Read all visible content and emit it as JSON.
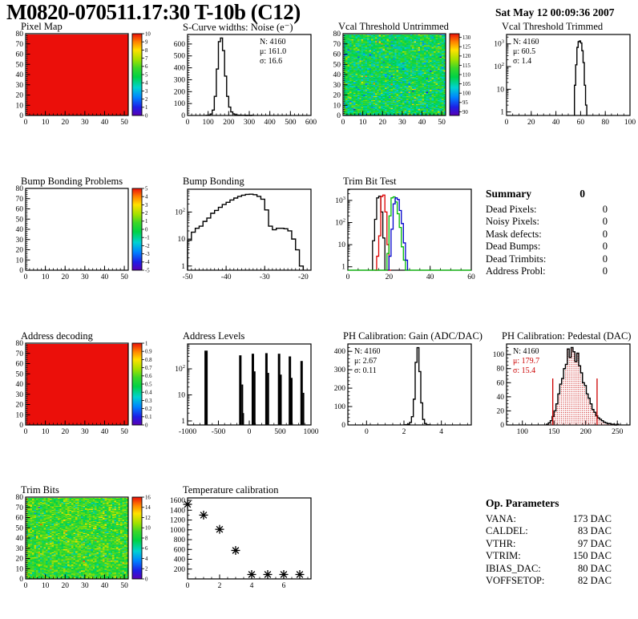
{
  "page": {
    "title": "M0820-070511.17:30 T-10b (C12)",
    "timestamp": "Sat May 12 00:09:36 2007"
  },
  "summary": {
    "heading": "Summary",
    "total": "0",
    "rows": [
      {
        "label": "Dead Pixels:",
        "value": "0"
      },
      {
        "label": "Noisy Pixels:",
        "value": "0"
      },
      {
        "label": "Mask defects:",
        "value": "0"
      },
      {
        "label": "Dead Bumps:",
        "value": "0"
      },
      {
        "label": "Dead Trimbits:",
        "value": "0"
      },
      {
        "label": "Address Probl:",
        "value": "0"
      }
    ]
  },
  "op_parameters": {
    "heading": "Op. Parameters",
    "rows": [
      {
        "label": "VANA:",
        "value": "173 DAC"
      },
      {
        "label": "CALDEL:",
        "value": "83 DAC"
      },
      {
        "label": "VTHR:",
        "value": "97 DAC"
      },
      {
        "label": "VTRIM:",
        "value": "150 DAC"
      },
      {
        "label": "IBIAS_DAC:",
        "value": "80 DAC"
      },
      {
        "label": "VOFFSETOP:",
        "value": "82 DAC"
      }
    ]
  },
  "chart_data": [
    {
      "type": "heatmap",
      "title": "Pixel Map",
      "name": "pixel-map",
      "x": {
        "min": 0,
        "max": 52,
        "ticks": [
          0,
          10,
          20,
          30,
          40,
          50
        ],
        "minor": 2
      },
      "y": {
        "min": 0,
        "max": 80,
        "ticks": [
          0,
          10,
          20,
          30,
          40,
          50,
          60,
          70,
          80
        ],
        "minor": 2
      },
      "z": {
        "min": 0,
        "max": 10,
        "colorbar_ticks": [
          0,
          1,
          2,
          3,
          4,
          5,
          6,
          7,
          8,
          9,
          10
        ]
      },
      "fill": "uniform",
      "uniform_value": 10
    },
    {
      "type": "histogram",
      "title": "S-Curve widths: Noise (e⁻)",
      "name": "scurve-noise",
      "x": {
        "min": 0,
        "max": 600,
        "ticks": [
          0,
          100,
          200,
          300,
          400,
          500,
          600
        ],
        "minor": 20
      },
      "y": {
        "min": 0,
        "max": 680,
        "ticks": [
          0,
          100,
          200,
          300,
          400,
          500,
          600
        ],
        "minor": 20
      },
      "yscale": "linear",
      "x0": 90,
      "bin_width": 10,
      "values": [
        1,
        3,
        12,
        45,
        160,
        390,
        620,
        650,
        545,
        330,
        160,
        70,
        30,
        13,
        6,
        3,
        2,
        1,
        1,
        0,
        1,
        0,
        1
      ],
      "stats": {
        "pos": "tr",
        "lines": [
          [
            "N: 4160",
            "#000000"
          ],
          [
            "μ: 161.0",
            "#000000"
          ],
          [
            "σ: 16.6",
            "#000000"
          ]
        ]
      }
    },
    {
      "type": "heatmap",
      "title": "Vcal Threshold Untrimmed",
      "name": "vcal-untrimmed",
      "x": {
        "min": 0,
        "max": 52,
        "ticks": [
          0,
          10,
          20,
          30,
          40,
          50
        ],
        "minor": 2
      },
      "y": {
        "min": 0,
        "max": 80,
        "ticks": [
          0,
          10,
          20,
          30,
          40,
          50,
          60,
          70,
          80
        ],
        "minor": 2
      },
      "z": {
        "min": 88,
        "max": 132,
        "colorbar_ticks": [
          90,
          95,
          100,
          105,
          110,
          115,
          120,
          125,
          130
        ]
      },
      "fill": "noise",
      "noise_mean": 109,
      "noise_sigma": 4.5,
      "seed": 12345
    },
    {
      "type": "histogram",
      "title": "Vcal Threshold Trimmed",
      "name": "vcal-trimmed",
      "x": {
        "min": 0,
        "max": 100,
        "ticks": [
          0,
          20,
          40,
          60,
          80,
          100
        ],
        "minor": 5
      },
      "yscale": "log",
      "y": {
        "min": 0.7,
        "max": 2600
      },
      "x0": 55,
      "bin_width": 1,
      "values": [
        15,
        120,
        700,
        1250,
        1350,
        1100,
        500,
        150,
        15,
        2
      ],
      "stats": {
        "pos": "tl",
        "lines": [
          [
            "N: 4160",
            "#000000"
          ],
          [
            "μ: 60.5",
            "#000000"
          ],
          [
            "σ:  1.4",
            "#000000"
          ]
        ]
      }
    },
    {
      "type": "heatmap",
      "title": "Bump Bonding Problems",
      "name": "bump-bonding-problems",
      "x": {
        "min": 0,
        "max": 52,
        "ticks": [
          0,
          10,
          20,
          30,
          40,
          50
        ],
        "minor": 2
      },
      "y": {
        "min": 0,
        "max": 80,
        "ticks": [
          0,
          10,
          20,
          30,
          40,
          50,
          60,
          70,
          80
        ],
        "minor": 2
      },
      "z": {
        "min": -5,
        "max": 5,
        "colorbar_ticks": [
          -5,
          -4,
          -3,
          -2,
          -1,
          0,
          1,
          2,
          3,
          4,
          5
        ]
      },
      "fill": "empty"
    },
    {
      "type": "histogram",
      "title": "Bump Bonding",
      "name": "bump-bonding",
      "x": {
        "min": -50,
        "max": -18,
        "ticks": [
          -50,
          -40,
          -30,
          -20
        ],
        "minor": 1
      },
      "yscale": "log",
      "y": {
        "min": 0.7,
        "max": 700
      },
      "x0": -50,
      "bin_width": 1,
      "values": [
        9,
        18,
        25,
        30,
        45,
        60,
        90,
        115,
        150,
        190,
        230,
        280,
        330,
        380,
        420,
        450,
        460,
        440,
        380,
        300,
        120,
        30,
        22,
        25,
        25,
        24,
        20,
        10,
        4,
        1
      ]
    },
    {
      "type": "multi_histogram",
      "title": "Trim Bit Test",
      "name": "trim-bit-test",
      "x": {
        "min": 0,
        "max": 60,
        "ticks": [
          0,
          20,
          40,
          60
        ],
        "minor": 5
      },
      "yscale": "log",
      "y": {
        "min": 0.7,
        "max": 3200
      },
      "series": [
        {
          "color": "#000000",
          "x0": 12,
          "bin_width": 1,
          "values": [
            15,
            140,
            1300,
            1550,
            300,
            20
          ]
        },
        {
          "color": "#dd0000",
          "x0": 13,
          "bin_width": 1,
          "values": [
            0,
            3,
            25,
            1500,
            1750,
            300,
            10,
            0
          ]
        },
        {
          "color": "#00bb00",
          "x0": 0,
          "bin_width": 1,
          "values": [
            0,
            0,
            0,
            0,
            0,
            0,
            0,
            0,
            0,
            0,
            0,
            0,
            0,
            0,
            0,
            0,
            0,
            0,
            0,
            4,
            200,
            1300,
            1450,
            850,
            250,
            60,
            8,
            2,
            0,
            0,
            0,
            0,
            0,
            0,
            0,
            0,
            0,
            0,
            0,
            0,
            0,
            0,
            0,
            0,
            0,
            0,
            0,
            0,
            0,
            0,
            0,
            0,
            0,
            0,
            0,
            0,
            0,
            0,
            0,
            0
          ]
        },
        {
          "color": "#0000cc",
          "x0": 20,
          "bin_width": 1,
          "values": [
            3,
            50,
            700,
            1300,
            1100,
            350,
            90,
            12,
            2
          ]
        }
      ]
    },
    {
      "type": "heatmap",
      "title": "Address decoding",
      "name": "address-decoding",
      "x": {
        "min": 0,
        "max": 52,
        "ticks": [
          0,
          10,
          20,
          30,
          40,
          50
        ],
        "minor": 2
      },
      "y": {
        "min": 0,
        "max": 80,
        "ticks": [
          0,
          10,
          20,
          30,
          40,
          50,
          60,
          70,
          80
        ],
        "minor": 2
      },
      "z": {
        "min": 0,
        "max": 1,
        "colorbar_ticks": [
          0,
          0.1,
          0.2,
          0.3,
          0.4,
          0.5,
          0.6,
          0.7,
          0.8,
          0.9,
          1
        ]
      },
      "fill": "uniform",
      "uniform_value": 1
    },
    {
      "type": "spike_histogram",
      "title": "Address Levels",
      "name": "address-levels",
      "x": {
        "min": -1000,
        "max": 1000,
        "ticks": [
          -1000,
          -500,
          0,
          500,
          1000
        ],
        "minor": 100
      },
      "yscale": "log",
      "y": {
        "min": 0.7,
        "max": 900
      },
      "spikes": [
        [
          -700,
          500,
          4
        ],
        [
          -145,
          330,
          3
        ],
        [
          -112,
          25,
          2
        ],
        [
          -95,
          2,
          1.5
        ],
        [
          58,
          380,
          3
        ],
        [
          88,
          80,
          2
        ],
        [
          278,
          400,
          3
        ],
        [
          308,
          70,
          2
        ],
        [
          483,
          380,
          3
        ],
        [
          513,
          60,
          2
        ],
        [
          658,
          300,
          3
        ],
        [
          688,
          45,
          2
        ],
        [
          848,
          200,
          3
        ],
        [
          878,
          12,
          2
        ]
      ]
    },
    {
      "type": "histogram",
      "title": "PH Calibration: Gain (ADC/DAC)",
      "name": "ph-gain",
      "x": {
        "min": -1,
        "max": 5.6,
        "ticks": [
          0,
          2,
          4
        ],
        "minor": 0.4
      },
      "y": {
        "min": 0,
        "max": 440,
        "ticks": [
          0,
          100,
          200,
          300,
          400
        ],
        "minor": 20
      },
      "yscale": "linear",
      "x0": 2.0,
      "bin_width": 0.1,
      "values": [
        1,
        2,
        5,
        14,
        45,
        140,
        340,
        420,
        290,
        120,
        30,
        8,
        2,
        1
      ],
      "stats": {
        "pos": "tl",
        "lines": [
          [
            "N: 4160",
            "#000000"
          ],
          [
            "μ: 2.67",
            "#000000"
          ],
          [
            "σ: 0.11",
            "#000000"
          ]
        ]
      }
    },
    {
      "type": "histogram",
      "title": "PH Calibration: Pedestal (DAC)",
      "name": "ph-pedestal",
      "x": {
        "min": 75,
        "max": 270,
        "ticks": [
          100,
          150,
          200,
          250
        ],
        "minor": 10
      },
      "y": {
        "min": 0,
        "max": 115,
        "ticks": [
          0,
          20,
          40,
          60,
          80,
          100
        ],
        "minor": 5
      },
      "yscale": "linear",
      "x0": 138,
      "bin_width": 3,
      "values": [
        1,
        3,
        6,
        12,
        20,
        30,
        44,
        58,
        66,
        80,
        86,
        108,
        96,
        110,
        104,
        90,
        102,
        84,
        74,
        60,
        56,
        44,
        38,
        30,
        22,
        18,
        13,
        10,
        8,
        6,
        4,
        3,
        2,
        2,
        1,
        1,
        0,
        1
      ],
      "fill_style": "red-dots",
      "red_lines": [
        {
          "x": 148,
          "h": 66
        },
        {
          "x": 218,
          "h": 66
        }
      ],
      "stats": {
        "pos": "tl",
        "lines": [
          [
            "N: 4160",
            "#000000"
          ],
          [
            "μ: 179.7",
            "#cc0000"
          ],
          [
            "σ: 15.4",
            "#cc0000"
          ]
        ]
      }
    },
    {
      "type": "heatmap",
      "title": "Trim Bits",
      "name": "trim-bits",
      "x": {
        "min": 0,
        "max": 52,
        "ticks": [
          0,
          10,
          20,
          30,
          40,
          50
        ],
        "minor": 2
      },
      "y": {
        "min": 0,
        "max": 80,
        "ticks": [
          0,
          10,
          20,
          30,
          40,
          50,
          60,
          70,
          80
        ],
        "minor": 2
      },
      "z": {
        "min": 0,
        "max": 16,
        "colorbar_ticks": [
          0,
          2,
          4,
          6,
          8,
          10,
          12,
          14,
          16
        ]
      },
      "fill": "noise",
      "noise_mean": 9,
      "noise_sigma": 1.5,
      "seed": 777
    },
    {
      "type": "scatter",
      "title": "Temperature calibration",
      "name": "temperature-calibration",
      "x": {
        "min": 0,
        "max": 7.7,
        "ticks": [
          0,
          2,
          4,
          6
        ],
        "minor": 0.5
      },
      "y": {
        "min": 0,
        "max": 1650,
        "ticks": [
          200,
          400,
          600,
          800,
          1000,
          1200,
          1400,
          1600
        ],
        "minor": 100
      },
      "marker": "asterisk",
      "points": [
        [
          0,
          1520
        ],
        [
          1,
          1300
        ],
        [
          2,
          1010
        ],
        [
          3,
          580
        ],
        [
          4,
          90
        ],
        [
          5,
          90
        ],
        [
          6,
          90
        ],
        [
          7,
          90
        ]
      ]
    }
  ]
}
